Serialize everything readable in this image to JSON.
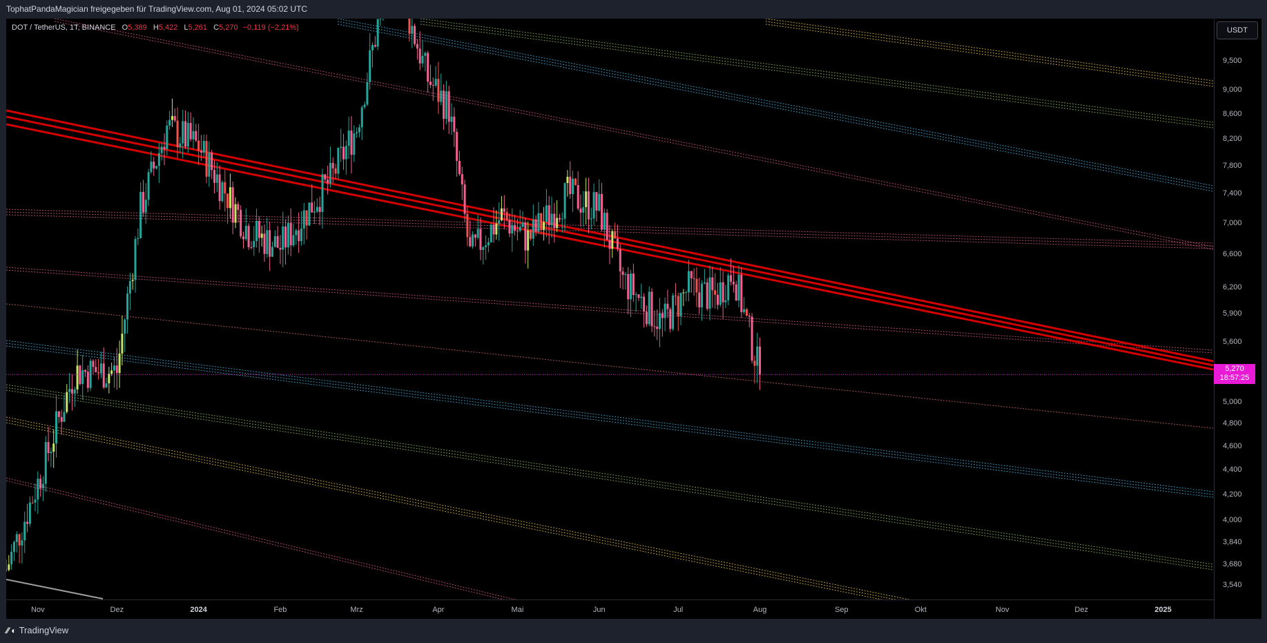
{
  "header": {
    "share_text": "TophatPandaMagician freigegeben für TradingView.com, Aug 01, 2024 05:02 UTC"
  },
  "legend": {
    "symbol": "DOT / TetherUS, 1T, BINANCE",
    "open_label": "O",
    "open": "5,389",
    "high_label": "H",
    "high": "5,422",
    "low_label": "L",
    "low": "5,261",
    "close_label": "C",
    "close": "5,270",
    "change": "−0,119 (−2,21%)"
  },
  "currency_button": "USDT",
  "price_axis": [
    "9,500",
    "9,000",
    "8,600",
    "8,200",
    "7,800",
    "7,400",
    "7,000",
    "6,600",
    "6,200",
    "5,900",
    "5,600",
    "5,000",
    "4,800",
    "4,600",
    "4,400",
    "4,200",
    "4,000",
    "3,840",
    "3,680",
    "3,540"
  ],
  "last_price": {
    "value": "5,270",
    "countdown": "18:57:25",
    "color": "#e91ad6"
  },
  "time_axis": [
    "Nov",
    "Dez",
    "2024",
    "Feb",
    "Mrz",
    "Apr",
    "Mai",
    "Jun",
    "Jul",
    "Aug",
    "Sep",
    "Okt",
    "Nov",
    "Dez",
    "2025"
  ],
  "footer": {
    "brand": "TradingView"
  },
  "colors": {
    "up": "#26a69a",
    "down": "#ef5350",
    "pink": "#f06292",
    "trend": "#d40000",
    "background": "#000000"
  },
  "chart_data": {
    "type": "candlestick",
    "series_name": "DOT / TetherUS",
    "interval": "1T",
    "exchange": "BINANCE",
    "x_range": [
      "2023-10-20",
      "2025-01-20"
    ],
    "y_scale": "log",
    "y_range": [
      3.45,
      10.3
    ],
    "last_close": 5.27,
    "approx_path": [
      {
        "date": "2023-10-20",
        "price": 3.65
      },
      {
        "date": "2023-11-01",
        "price": 4.3
      },
      {
        "date": "2023-11-15",
        "price": 5.3
      },
      {
        "date": "2023-12-01",
        "price": 5.3
      },
      {
        "date": "2023-12-10",
        "price": 7.2
      },
      {
        "date": "2023-12-20",
        "price": 8.4
      },
      {
        "date": "2024-01-01",
        "price": 8.1
      },
      {
        "date": "2024-01-20",
        "price": 6.9
      },
      {
        "date": "2024-02-01",
        "price": 6.7
      },
      {
        "date": "2024-02-20",
        "price": 7.6
      },
      {
        "date": "2024-03-01",
        "price": 8.4
      },
      {
        "date": "2024-03-14",
        "price": 11.5
      },
      {
        "date": "2024-03-28",
        "price": 9.2
      },
      {
        "date": "2024-04-05",
        "price": 8.7
      },
      {
        "date": "2024-04-13",
        "price": 6.6
      },
      {
        "date": "2024-04-25",
        "price": 7.1
      },
      {
        "date": "2024-05-05",
        "price": 6.8
      },
      {
        "date": "2024-05-20",
        "price": 7.4
      },
      {
        "date": "2024-06-01",
        "price": 7.2
      },
      {
        "date": "2024-06-10",
        "price": 6.3
      },
      {
        "date": "2024-06-25",
        "price": 5.8
      },
      {
        "date": "2024-07-05",
        "price": 6.2
      },
      {
        "date": "2024-07-15",
        "price": 6.1
      },
      {
        "date": "2024-07-22",
        "price": 6.4
      },
      {
        "date": "2024-07-27",
        "price": 5.8
      },
      {
        "date": "2024-08-01",
        "price": 5.27
      }
    ]
  }
}
